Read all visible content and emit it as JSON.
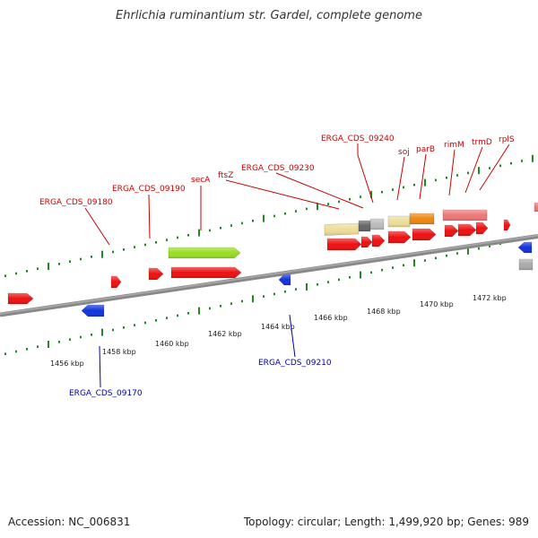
{
  "title": "Ehrlichia ruminantium str. Gardel, complete genome",
  "footer": {
    "accession": "Accession: NC_006831",
    "summary": "Topology: circular; Length: 1,499,920 bp; Genes: 989"
  },
  "colors": {
    "forward_label": "#cc0000",
    "reverse_label": "#0000aa",
    "cds_forward": "#ee1111",
    "cds_reverse": "#1133dd",
    "backbone": "#888888",
    "tick": "#228822"
  },
  "scale": {
    "unit": "kbp",
    "ticks": [
      {
        "label": "1456 kbp"
      },
      {
        "label": "1458 kbp"
      },
      {
        "label": "1460 kbp"
      },
      {
        "label": "1462 kbp"
      },
      {
        "label": "1464 kbp"
      },
      {
        "label": "1466 kbp"
      },
      {
        "label": "1468 kbp"
      },
      {
        "label": "1470 kbp"
      },
      {
        "label": "1472 kbp"
      }
    ]
  },
  "forward_labels": [
    {
      "text": "ERGA_CDS_09180"
    },
    {
      "text": "ERGA_CDS_09190"
    },
    {
      "text": "secA"
    },
    {
      "text": "ftsZ"
    },
    {
      "text": "ERGA_CDS_09230"
    },
    {
      "text": "ERGA_CDS_09240"
    },
    {
      "text": "soj"
    },
    {
      "text": "parB"
    },
    {
      "text": "rimM"
    },
    {
      "text": "trmD"
    },
    {
      "text": "rplS"
    }
  ],
  "reverse_labels": [
    {
      "text": "ERGA_CDS_09170"
    },
    {
      "text": "ERGA_CDS_09210"
    }
  ],
  "features": [
    {
      "kind": "cds",
      "strand": "forward",
      "color": "#ee1111"
    },
    {
      "kind": "cds",
      "strand": "forward",
      "color": "#ee1111"
    },
    {
      "kind": "cds",
      "strand": "forward",
      "color": "#ee1111"
    },
    {
      "kind": "cds",
      "strand": "forward",
      "color": "#ee1111"
    },
    {
      "kind": "cds",
      "strand": "forward",
      "color": "#ee1111"
    },
    {
      "kind": "cds",
      "strand": "forward",
      "color": "#ee1111"
    },
    {
      "kind": "cds",
      "strand": "forward",
      "color": "#ee1111"
    },
    {
      "kind": "cds",
      "strand": "forward",
      "color": "#ee1111"
    },
    {
      "kind": "cds",
      "strand": "forward",
      "color": "#ee1111"
    },
    {
      "kind": "cds",
      "strand": "forward",
      "color": "#ee1111"
    },
    {
      "kind": "cds",
      "strand": "forward",
      "color": "#ee1111"
    },
    {
      "kind": "cds",
      "strand": "forward",
      "color": "#ee1111"
    },
    {
      "kind": "cds",
      "strand": "forward",
      "color": "#ee1111"
    },
    {
      "kind": "cds",
      "strand": "reverse",
      "color": "#1133dd"
    },
    {
      "kind": "cds",
      "strand": "reverse",
      "color": "#1133dd"
    },
    {
      "kind": "cds",
      "strand": "reverse",
      "color": "#1133dd"
    },
    {
      "kind": "category",
      "strand": "forward",
      "color": "#99dd22"
    },
    {
      "kind": "category",
      "strand": "forward",
      "color": "#eedd99"
    },
    {
      "kind": "category",
      "strand": "forward",
      "color": "#666666"
    },
    {
      "kind": "category",
      "strand": "forward",
      "color": "#bbbbbb"
    },
    {
      "kind": "category",
      "strand": "forward",
      "color": "#eedd99"
    },
    {
      "kind": "category",
      "strand": "forward",
      "color": "#ee8811"
    },
    {
      "kind": "category",
      "strand": "forward",
      "color": "#ee7777"
    },
    {
      "kind": "category",
      "strand": "forward",
      "color": "#ee7777"
    },
    {
      "kind": "category",
      "strand": "reverse",
      "color": "#aaaaaa"
    }
  ]
}
